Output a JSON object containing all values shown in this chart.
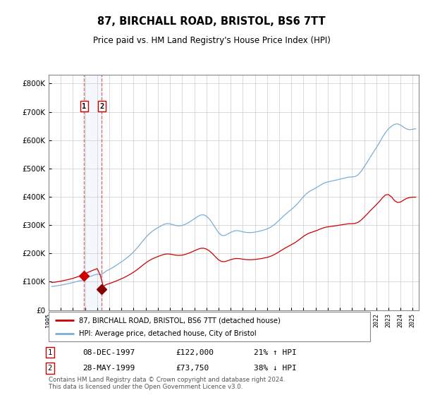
{
  "title": "87, BIRCHALL ROAD, BRISTOL, BS6 7TT",
  "subtitle": "Price paid vs. HM Land Registry's House Price Index (HPI)",
  "background_color": "#ffffff",
  "plot_bg_color": "#ffffff",
  "grid_color": "#cccccc",
  "hpi_line_color": "#7aaed6",
  "price_line_color": "#cc0000",
  "sale1_date_num": 1997.92,
  "sale1_price": 122000,
  "sale2_date_num": 1999.38,
  "sale2_price": 73750,
  "sale1_hpi_pct": "21% ↑ HPI",
  "sale2_hpi_pct": "38% ↓ HPI",
  "sale1_date_str": "08-DEC-1997",
  "sale2_date_str": "28-MAY-1999",
  "legend_line1": "87, BIRCHALL ROAD, BRISTOL, BS6 7TT (detached house)",
  "legend_line2": "HPI: Average price, detached house, City of Bristol",
  "footer": "Contains HM Land Registry data © Crown copyright and database right 2024.\nThis data is licensed under the Open Government Licence v3.0.",
  "ylim": [
    0,
    830000
  ],
  "xlim_start": 1995.2,
  "xlim_end": 2025.5,
  "yticks": [
    0,
    100000,
    200000,
    300000,
    400000,
    500000,
    600000,
    700000,
    800000
  ],
  "ytick_labels": [
    "£0",
    "£100K",
    "£200K",
    "£300K",
    "£400K",
    "£500K",
    "£600K",
    "£700K",
    "£800K"
  ],
  "hpi_data": [
    [
      1995.25,
      83000
    ],
    [
      1995.5,
      84500
    ],
    [
      1995.75,
      86000
    ],
    [
      1996.0,
      88000
    ],
    [
      1996.25,
      90000
    ],
    [
      1996.5,
      92000
    ],
    [
      1996.75,
      94500
    ],
    [
      1997.0,
      97000
    ],
    [
      1997.25,
      100000
    ],
    [
      1997.5,
      103000
    ],
    [
      1997.75,
      107000
    ],
    [
      1997.92,
      101000
    ],
    [
      1998.0,
      112000
    ],
    [
      1998.25,
      116000
    ],
    [
      1998.5,
      120000
    ],
    [
      1998.75,
      124000
    ],
    [
      1999.0,
      127000
    ],
    [
      1999.25,
      130000
    ],
    [
      1999.38,
      119000
    ],
    [
      1999.5,
      133000
    ],
    [
      1999.75,
      138000
    ],
    [
      2000.0,
      143000
    ],
    [
      2000.25,
      149000
    ],
    [
      2000.5,
      156000
    ],
    [
      2000.75,
      163000
    ],
    [
      2001.0,
      170000
    ],
    [
      2001.25,
      178000
    ],
    [
      2001.5,
      186000
    ],
    [
      2001.75,
      195000
    ],
    [
      2002.0,
      205000
    ],
    [
      2002.25,
      217000
    ],
    [
      2002.5,
      230000
    ],
    [
      2002.75,
      244000
    ],
    [
      2003.0,
      257000
    ],
    [
      2003.25,
      268000
    ],
    [
      2003.5,
      278000
    ],
    [
      2003.75,
      285000
    ],
    [
      2004.0,
      291000
    ],
    [
      2004.25,
      297000
    ],
    [
      2004.5,
      303000
    ],
    [
      2004.75,
      308000
    ],
    [
      2005.0,
      305000
    ],
    [
      2005.25,
      301000
    ],
    [
      2005.5,
      298000
    ],
    [
      2005.75,
      296000
    ],
    [
      2006.0,
      298000
    ],
    [
      2006.25,
      302000
    ],
    [
      2006.5,
      308000
    ],
    [
      2006.75,
      315000
    ],
    [
      2007.0,
      322000
    ],
    [
      2007.25,
      330000
    ],
    [
      2007.5,
      336000
    ],
    [
      2007.75,
      340000
    ],
    [
      2008.0,
      334000
    ],
    [
      2008.25,
      322000
    ],
    [
      2008.5,
      308000
    ],
    [
      2008.75,
      290000
    ],
    [
      2009.0,
      270000
    ],
    [
      2009.25,
      260000
    ],
    [
      2009.5,
      262000
    ],
    [
      2009.75,
      268000
    ],
    [
      2010.0,
      275000
    ],
    [
      2010.25,
      280000
    ],
    [
      2010.5,
      282000
    ],
    [
      2010.75,
      280000
    ],
    [
      2011.0,
      276000
    ],
    [
      2011.25,
      274000
    ],
    [
      2011.5,
      273000
    ],
    [
      2011.75,
      274000
    ],
    [
      2012.0,
      275000
    ],
    [
      2012.25,
      277000
    ],
    [
      2012.5,
      280000
    ],
    [
      2012.75,
      283000
    ],
    [
      2013.0,
      286000
    ],
    [
      2013.25,
      291000
    ],
    [
      2013.5,
      298000
    ],
    [
      2013.75,
      307000
    ],
    [
      2014.0,
      317000
    ],
    [
      2014.25,
      328000
    ],
    [
      2014.5,
      338000
    ],
    [
      2014.75,
      347000
    ],
    [
      2015.0,
      355000
    ],
    [
      2015.25,
      364000
    ],
    [
      2015.5,
      375000
    ],
    [
      2015.75,
      388000
    ],
    [
      2016.0,
      401000
    ],
    [
      2016.25,
      413000
    ],
    [
      2016.5,
      420000
    ],
    [
      2016.75,
      425000
    ],
    [
      2017.0,
      430000
    ],
    [
      2017.25,
      437000
    ],
    [
      2017.5,
      445000
    ],
    [
      2017.75,
      450000
    ],
    [
      2018.0,
      453000
    ],
    [
      2018.25,
      455000
    ],
    [
      2018.5,
      457000
    ],
    [
      2018.75,
      460000
    ],
    [
      2019.0,
      462000
    ],
    [
      2019.25,
      465000
    ],
    [
      2019.5,
      467000
    ],
    [
      2019.75,
      470000
    ],
    [
      2020.0,
      472000
    ],
    [
      2020.25,
      468000
    ],
    [
      2020.5,
      475000
    ],
    [
      2020.75,
      490000
    ],
    [
      2021.0,
      505000
    ],
    [
      2021.25,
      522000
    ],
    [
      2021.5,
      540000
    ],
    [
      2021.75,
      558000
    ],
    [
      2022.0,
      572000
    ],
    [
      2022.25,
      590000
    ],
    [
      2022.5,
      610000
    ],
    [
      2022.75,
      630000
    ],
    [
      2023.0,
      640000
    ],
    [
      2023.25,
      650000
    ],
    [
      2023.5,
      658000
    ],
    [
      2023.75,
      660000
    ],
    [
      2024.0,
      655000
    ],
    [
      2024.25,
      645000
    ],
    [
      2024.5,
      638000
    ],
    [
      2024.75,
      635000
    ],
    [
      2025.0,
      638000
    ],
    [
      2025.25,
      642000
    ]
  ],
  "red_data": [
    [
      1995.25,
      97000
    ],
    [
      1995.5,
      98500
    ],
    [
      1995.75,
      100000
    ],
    [
      1996.0,
      102000
    ],
    [
      1996.25,
      104500
    ],
    [
      1996.5,
      106500
    ],
    [
      1996.75,
      109000
    ],
    [
      1997.0,
      112000
    ],
    [
      1997.25,
      115500
    ],
    [
      1997.5,
      119000
    ],
    [
      1997.75,
      123500
    ],
    [
      1997.92,
      122000
    ],
    [
      1998.0,
      129000
    ],
    [
      1998.25,
      133000
    ],
    [
      1998.5,
      138000
    ],
    [
      1998.75,
      143000
    ],
    [
      1999.0,
      146000
    ],
    [
      1999.25,
      150000
    ],
    [
      1999.38,
      73750
    ],
    [
      1999.5,
      87000
    ],
    [
      1999.75,
      90000
    ],
    [
      2000.0,
      93500
    ],
    [
      2000.25,
      97000
    ],
    [
      2000.5,
      101500
    ],
    [
      2000.75,
      106000
    ],
    [
      2001.0,
      110500
    ],
    [
      2001.25,
      115500
    ],
    [
      2001.5,
      121000
    ],
    [
      2001.75,
      127000
    ],
    [
      2002.0,
      133500
    ],
    [
      2002.25,
      141000
    ],
    [
      2002.5,
      149500
    ],
    [
      2002.75,
      158500
    ],
    [
      2003.0,
      167000
    ],
    [
      2003.25,
      174000
    ],
    [
      2003.5,
      180500
    ],
    [
      2003.75,
      185000
    ],
    [
      2004.0,
      189000
    ],
    [
      2004.25,
      193000
    ],
    [
      2004.5,
      197000
    ],
    [
      2004.75,
      200000
    ],
    [
      2005.0,
      198000
    ],
    [
      2005.25,
      195500
    ],
    [
      2005.5,
      193500
    ],
    [
      2005.75,
      192000
    ],
    [
      2006.0,
      193500
    ],
    [
      2006.25,
      196000
    ],
    [
      2006.5,
      200000
    ],
    [
      2006.75,
      204500
    ],
    [
      2007.0,
      209000
    ],
    [
      2007.25,
      214500
    ],
    [
      2007.5,
      218500
    ],
    [
      2007.75,
      220500
    ],
    [
      2008.0,
      217000
    ],
    [
      2008.25,
      209000
    ],
    [
      2008.5,
      200000
    ],
    [
      2008.75,
      188500
    ],
    [
      2009.0,
      175500
    ],
    [
      2009.25,
      169000
    ],
    [
      2009.5,
      170000
    ],
    [
      2009.75,
      174000
    ],
    [
      2010.0,
      178500
    ],
    [
      2010.25,
      181500
    ],
    [
      2010.5,
      183000
    ],
    [
      2010.75,
      182000
    ],
    [
      2011.0,
      179500
    ],
    [
      2011.25,
      178000
    ],
    [
      2011.5,
      177500
    ],
    [
      2011.75,
      178000
    ],
    [
      2012.0,
      178500
    ],
    [
      2012.25,
      180000
    ],
    [
      2012.5,
      182000
    ],
    [
      2012.75,
      183500
    ],
    [
      2013.0,
      185500
    ],
    [
      2013.25,
      189000
    ],
    [
      2013.5,
      193500
    ],
    [
      2013.75,
      199500
    ],
    [
      2014.0,
      206000
    ],
    [
      2014.25,
      213000
    ],
    [
      2014.5,
      219500
    ],
    [
      2014.75,
      225500
    ],
    [
      2015.0,
      230500
    ],
    [
      2015.25,
      236500
    ],
    [
      2015.5,
      243500
    ],
    [
      2015.75,
      252000
    ],
    [
      2016.0,
      260500
    ],
    [
      2016.25,
      268500
    ],
    [
      2016.5,
      272500
    ],
    [
      2016.75,
      276000
    ],
    [
      2017.0,
      279000
    ],
    [
      2017.25,
      283500
    ],
    [
      2017.5,
      289000
    ],
    [
      2017.75,
      292000
    ],
    [
      2018.0,
      294000
    ],
    [
      2018.25,
      295500
    ],
    [
      2018.5,
      296500
    ],
    [
      2018.75,
      298500
    ],
    [
      2019.0,
      300000
    ],
    [
      2019.25,
      302000
    ],
    [
      2019.5,
      303500
    ],
    [
      2019.75,
      305000
    ],
    [
      2020.0,
      306500
    ],
    [
      2020.25,
      304000
    ],
    [
      2020.5,
      308000
    ],
    [
      2020.75,
      318000
    ],
    [
      2021.0,
      328000
    ],
    [
      2021.25,
      339000
    ],
    [
      2021.5,
      350500
    ],
    [
      2021.75,
      362500
    ],
    [
      2022.0,
      371000
    ],
    [
      2022.25,
      383000
    ],
    [
      2022.5,
      396000
    ],
    [
      2022.75,
      409000
    ],
    [
      2023.0,
      415000
    ],
    [
      2023.25,
      400000
    ],
    [
      2023.5,
      385000
    ],
    [
      2023.75,
      375000
    ],
    [
      2024.0,
      380000
    ],
    [
      2024.25,
      390000
    ],
    [
      2024.5,
      395000
    ],
    [
      2024.75,
      398000
    ],
    [
      2025.0,
      400000
    ],
    [
      2025.25,
      398000
    ]
  ]
}
